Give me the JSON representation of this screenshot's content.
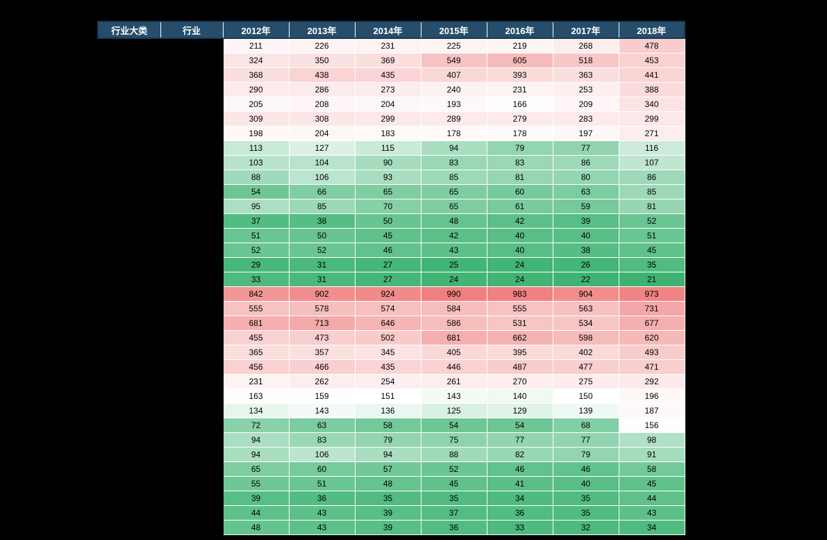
{
  "background_color": "#000000",
  "header_bg": "#264e6c",
  "header_text_color": "#ffffff",
  "columns": [
    "行业大类",
    "行业",
    "2012年",
    "2013年",
    "2014年",
    "2015年",
    "2016年",
    "2017年",
    "2018年"
  ],
  "color_scale": {
    "min_value": 21,
    "max_value": 990,
    "low_color": "#3cb371",
    "mid_color": "#ffffff",
    "high_color": "#f08080",
    "midpoint": 150
  },
  "label_column_count": 2,
  "rows": [
    [
      211,
      226,
      231,
      225,
      219,
      268,
      478
    ],
    [
      324,
      350,
      369,
      549,
      605,
      518,
      453
    ],
    [
      368,
      438,
      435,
      407,
      393,
      363,
      441
    ],
    [
      290,
      286,
      273,
      240,
      231,
      253,
      388
    ],
    [
      205,
      208,
      204,
      193,
      166,
      209,
      340
    ],
    [
      309,
      308,
      299,
      289,
      279,
      283,
      299
    ],
    [
      198,
      204,
      183,
      178,
      178,
      197,
      271
    ],
    [
      113,
      127,
      115,
      94,
      79,
      77,
      116
    ],
    [
      103,
      104,
      90,
      83,
      83,
      86,
      107
    ],
    [
      88,
      106,
      93,
      85,
      81,
      80,
      86
    ],
    [
      54,
      66,
      65,
      65,
      60,
      63,
      85
    ],
    [
      95,
      85,
      70,
      65,
      61,
      59,
      81
    ],
    [
      37,
      38,
      50,
      48,
      42,
      39,
      52
    ],
    [
      51,
      50,
      45,
      42,
      40,
      40,
      51
    ],
    [
      52,
      52,
      46,
      43,
      40,
      38,
      45
    ],
    [
      29,
      31,
      27,
      25,
      24,
      26,
      35
    ],
    [
      33,
      31,
      27,
      24,
      24,
      22,
      21
    ],
    [
      842,
      902,
      924,
      990,
      983,
      904,
      973
    ],
    [
      555,
      578,
      574,
      584,
      555,
      563,
      731
    ],
    [
      681,
      713,
      646,
      586,
      531,
      534,
      677
    ],
    [
      455,
      473,
      502,
      681,
      662,
      598,
      620
    ],
    [
      365,
      357,
      345,
      405,
      395,
      402,
      493
    ],
    [
      456,
      466,
      435,
      446,
      487,
      477,
      471
    ],
    [
      231,
      262,
      254,
      261,
      270,
      275,
      292
    ],
    [
      163,
      159,
      151,
      143,
      140,
      150,
      196
    ],
    [
      134,
      143,
      136,
      125,
      129,
      139,
      187
    ],
    [
      72,
      63,
      58,
      54,
      54,
      68,
      156
    ],
    [
      94,
      83,
      79,
      75,
      77,
      77,
      98
    ],
    [
      94,
      106,
      94,
      88,
      82,
      79,
      91
    ],
    [
      65,
      60,
      57,
      52,
      46,
      46,
      58
    ],
    [
      55,
      51,
      48,
      45,
      41,
      40,
      45
    ],
    [
      39,
      36,
      35,
      35,
      34,
      35,
      44
    ],
    [
      44,
      43,
      39,
      37,
      36,
      35,
      43
    ],
    [
      48,
      43,
      39,
      36,
      33,
      32,
      34
    ]
  ]
}
